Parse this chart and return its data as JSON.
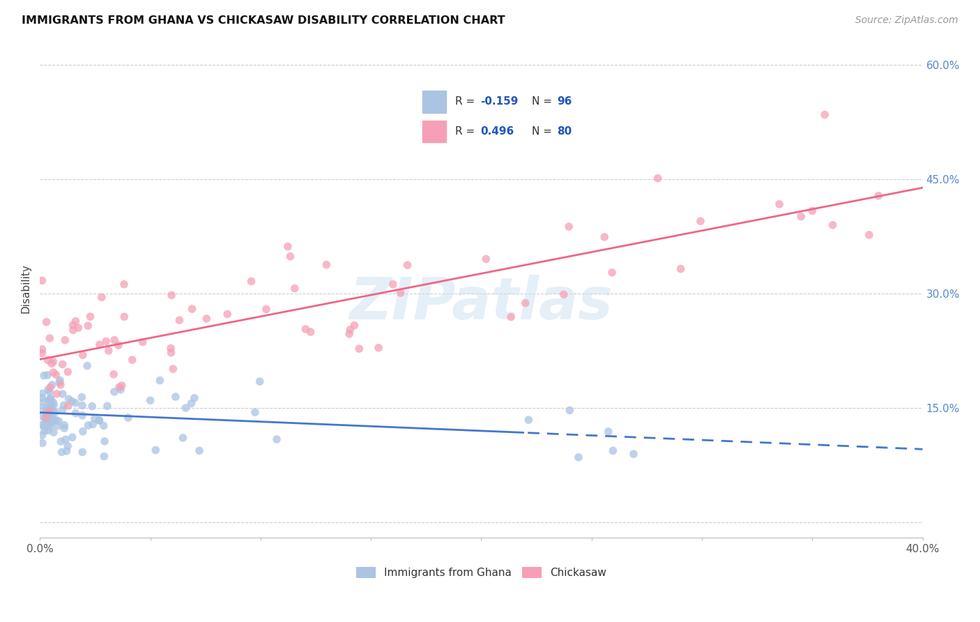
{
  "title": "IMMIGRANTS FROM GHANA VS CHICKASAW DISABILITY CORRELATION CHART",
  "source": "Source: ZipAtlas.com",
  "ylabel": "Disability",
  "xlim": [
    0.0,
    0.4
  ],
  "ylim": [
    -0.02,
    0.635
  ],
  "ghana_R": -0.159,
  "ghana_N": 96,
  "chickasaw_R": 0.496,
  "chickasaw_N": 80,
  "ghana_color": "#aac4e2",
  "chickasaw_color": "#f5a0b5",
  "ghana_line_color": "#4477cc",
  "chickasaw_line_color": "#ee6688",
  "watermark": "ZIPatlas",
  "background_color": "#ffffff",
  "grid_color": "#dddddd",
  "legend_R_color": "#2255bb",
  "legend_text_color": "#333333"
}
